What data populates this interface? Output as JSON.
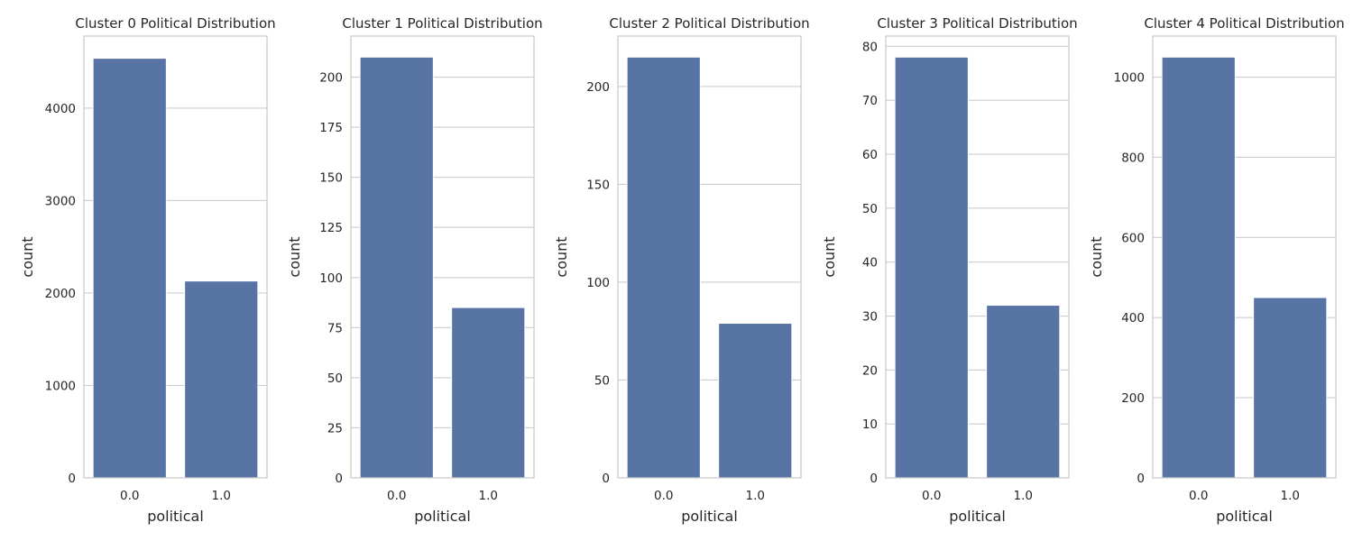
{
  "chart_data": [
    {
      "type": "bar",
      "title": "Cluster 0 Political Distribution",
      "xlabel": "political",
      "ylabel": "count",
      "categories": [
        "0.0",
        "1.0"
      ],
      "values": [
        4540,
        2130
      ],
      "ylim": [
        0,
        4780
      ],
      "yticks": [
        0,
        1000,
        2000,
        3000,
        4000
      ],
      "grid": "y",
      "color": "#5874a5"
    },
    {
      "type": "bar",
      "title": "Cluster 1 Political Distribution",
      "xlabel": "political",
      "ylabel": "count",
      "categories": [
        "0.0",
        "1.0"
      ],
      "values": [
        210,
        85
      ],
      "ylim": [
        0,
        220.5
      ],
      "yticks": [
        0,
        25,
        50,
        75,
        100,
        125,
        150,
        175,
        200
      ],
      "grid": "y",
      "color": "#5874a5"
    },
    {
      "type": "bar",
      "title": "Cluster 2 Political Distribution",
      "xlabel": "political",
      "ylabel": "count",
      "categories": [
        "0.0",
        "1.0"
      ],
      "values": [
        215,
        79
      ],
      "ylim": [
        0,
        225.75
      ],
      "yticks": [
        0,
        50,
        100,
        150,
        200
      ],
      "grid": "y",
      "color": "#5874a5"
    },
    {
      "type": "bar",
      "title": "Cluster 3 Political Distribution",
      "xlabel": "political",
      "ylabel": "count",
      "categories": [
        "0.0",
        "1.0"
      ],
      "values": [
        78,
        32
      ],
      "ylim": [
        0,
        81.9
      ],
      "yticks": [
        0,
        10,
        20,
        30,
        40,
        50,
        60,
        70,
        80
      ],
      "grid": "y",
      "color": "#5874a5"
    },
    {
      "type": "bar",
      "title": "Cluster 4 Political Distribution",
      "xlabel": "political",
      "ylabel": "count",
      "categories": [
        "0.0",
        "1.0"
      ],
      "values": [
        1050,
        450
      ],
      "ylim": [
        0,
        1102.5
      ],
      "yticks": [
        0,
        200,
        400,
        600,
        800,
        1000
      ],
      "grid": "y",
      "color": "#5874a5"
    }
  ]
}
